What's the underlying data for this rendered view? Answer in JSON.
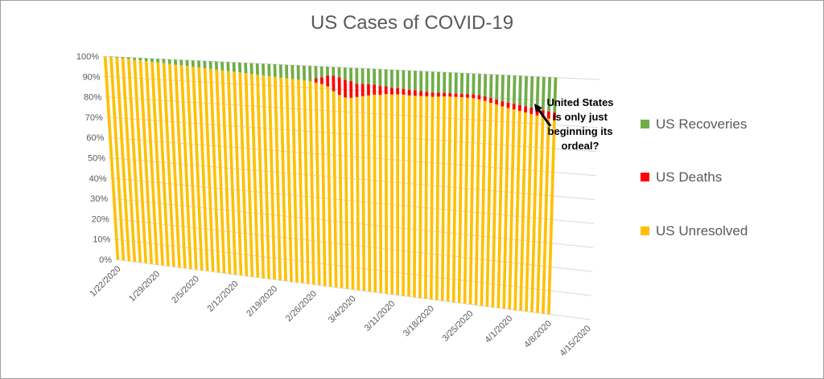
{
  "chart_data": {
    "type": "bar",
    "stacked": "100%",
    "title": "US Cases of COVID-19",
    "xlabel": "",
    "ylabel": "",
    "ylim": [
      0,
      1
    ],
    "y_ticks": [
      "0%",
      "10%",
      "20%",
      "30%",
      "40%",
      "50%",
      "60%",
      "70%",
      "80%",
      "90%",
      "100%"
    ],
    "x_tick_labels": [
      "1/22/2020",
      "1/29/2020",
      "2/5/2020",
      "2/12/2020",
      "2/19/2020",
      "2/26/2020",
      "3/4/2020",
      "3/11/2020",
      "3/18/2020",
      "3/25/2020",
      "4/1/2020",
      "4/8/2020",
      "4/15/2020"
    ],
    "grid": true,
    "legend_position": "right",
    "categories": [
      "1/22/2020",
      "1/23/2020",
      "1/24/2020",
      "1/25/2020",
      "1/26/2020",
      "1/27/2020",
      "1/28/2020",
      "1/29/2020",
      "1/30/2020",
      "1/31/2020",
      "2/1/2020",
      "2/2/2020",
      "2/3/2020",
      "2/4/2020",
      "2/5/2020",
      "2/6/2020",
      "2/7/2020",
      "2/8/2020",
      "2/9/2020",
      "2/10/2020",
      "2/11/2020",
      "2/12/2020",
      "2/13/2020",
      "2/14/2020",
      "2/15/2020",
      "2/16/2020",
      "2/17/2020",
      "2/18/2020",
      "2/19/2020",
      "2/20/2020",
      "2/21/2020",
      "2/22/2020",
      "2/23/2020",
      "2/24/2020",
      "2/25/2020",
      "2/26/2020",
      "2/27/2020",
      "2/28/2020",
      "2/29/2020",
      "3/1/2020",
      "3/2/2020",
      "3/3/2020",
      "3/4/2020",
      "3/5/2020",
      "3/6/2020",
      "3/7/2020",
      "3/8/2020",
      "3/9/2020",
      "3/10/2020",
      "3/11/2020",
      "3/12/2020",
      "3/13/2020",
      "3/14/2020",
      "3/15/2020",
      "3/16/2020",
      "3/17/2020",
      "3/18/2020",
      "3/19/2020",
      "3/20/2020",
      "3/21/2020",
      "3/22/2020",
      "3/23/2020",
      "3/24/2020",
      "3/25/2020",
      "3/26/2020",
      "3/27/2020",
      "3/28/2020",
      "3/29/2020",
      "3/30/2020",
      "3/31/2020",
      "4/1/2020",
      "4/2/2020",
      "4/3/2020",
      "4/4/2020",
      "4/5/2020",
      "4/6/2020",
      "4/7/2020",
      "4/8/2020"
    ],
    "series": [
      {
        "name": "US Unresolved",
        "color": "#FFC000",
        "values": [
          1.0,
          0.998,
          0.996,
          0.994,
          0.992,
          0.99,
          0.988,
          0.986,
          0.984,
          0.982,
          0.98,
          0.978,
          0.976,
          0.974,
          0.972,
          0.97,
          0.968,
          0.966,
          0.964,
          0.962,
          0.96,
          0.958,
          0.956,
          0.954,
          0.952,
          0.95,
          0.948,
          0.946,
          0.944,
          0.942,
          0.94,
          0.938,
          0.936,
          0.934,
          0.932,
          0.93,
          0.925,
          0.92,
          0.91,
          0.89,
          0.875,
          0.865,
          0.865,
          0.87,
          0.875,
          0.88,
          0.885,
          0.885,
          0.89,
          0.89,
          0.892,
          0.892,
          0.89,
          0.89,
          0.89,
          0.89,
          0.89,
          0.892,
          0.894,
          0.895,
          0.895,
          0.895,
          0.894,
          0.893,
          0.89,
          0.885,
          0.878,
          0.872,
          0.865,
          0.86,
          0.855,
          0.85,
          0.845,
          0.84,
          0.835,
          0.83,
          0.825,
          0.82
        ]
      },
      {
        "name": "US Deaths",
        "color": "#FF0000",
        "values": [
          0,
          0,
          0,
          0,
          0,
          0,
          0,
          0,
          0,
          0,
          0,
          0,
          0,
          0,
          0,
          0,
          0,
          0,
          0,
          0,
          0,
          0,
          0,
          0,
          0,
          0,
          0,
          0,
          0,
          0,
          0,
          0,
          0,
          0,
          0,
          0,
          0.02,
          0.03,
          0.05,
          0.07,
          0.08,
          0.08,
          0.075,
          0.06,
          0.055,
          0.05,
          0.045,
          0.04,
          0.035,
          0.03,
          0.028,
          0.026,
          0.025,
          0.024,
          0.022,
          0.02,
          0.018,
          0.017,
          0.016,
          0.015,
          0.015,
          0.015,
          0.016,
          0.017,
          0.018,
          0.019,
          0.02,
          0.021,
          0.022,
          0.023,
          0.024,
          0.025,
          0.026,
          0.027,
          0.028,
          0.029,
          0.03,
          0.031
        ]
      },
      {
        "name": "US Recoveries",
        "color": "#70AD47",
        "values": [
          0,
          0.002,
          0.004,
          0.006,
          0.008,
          0.01,
          0.012,
          0.014,
          0.016,
          0.018,
          0.02,
          0.022,
          0.024,
          0.026,
          0.028,
          0.03,
          0.032,
          0.034,
          0.036,
          0.038,
          0.04,
          0.042,
          0.044,
          0.046,
          0.048,
          0.05,
          0.052,
          0.054,
          0.056,
          0.058,
          0.06,
          0.062,
          0.064,
          0.066,
          0.068,
          0.07,
          0.055,
          0.05,
          0.04,
          0.04,
          0.045,
          0.055,
          0.06,
          0.07,
          0.07,
          0.07,
          0.07,
          0.075,
          0.075,
          0.08,
          0.08,
          0.082,
          0.085,
          0.086,
          0.088,
          0.09,
          0.092,
          0.091,
          0.09,
          0.09,
          0.09,
          0.09,
          0.09,
          0.09,
          0.092,
          0.096,
          0.102,
          0.107,
          0.113,
          0.117,
          0.121,
          0.125,
          0.129,
          0.133,
          0.137,
          0.141,
          0.145,
          0.149
        ]
      }
    ],
    "annotation": "United States is only just beginning its ordeal?"
  }
}
